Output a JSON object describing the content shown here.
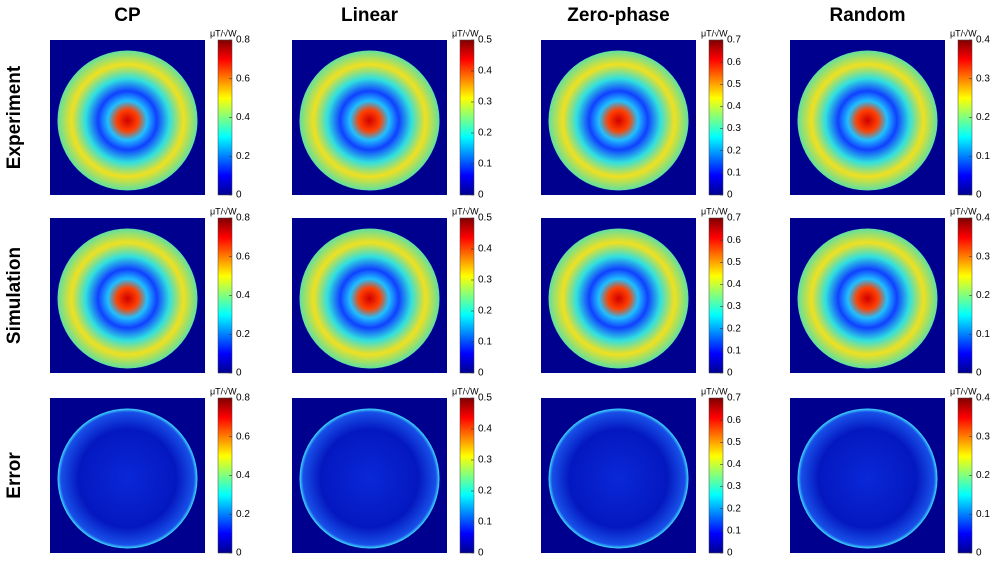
{
  "column_titles": [
    "CP",
    "Linear",
    "Zero-phase",
    "Random"
  ],
  "row_labels": [
    "Experiment",
    "Simulation",
    "Error"
  ],
  "chart_data": [
    {
      "type": "heatmap",
      "colorbar_label": "μT/√W",
      "clim": [
        0,
        0.8
      ],
      "cticks": [
        0,
        0.2,
        0.4,
        0.6,
        0.8
      ]
    },
    {
      "type": "heatmap",
      "colorbar_label": "μT/√W",
      "clim": [
        0,
        0.5
      ],
      "cticks": [
        0,
        0.1,
        0.2,
        0.3,
        0.4,
        0.5
      ]
    },
    {
      "type": "heatmap",
      "colorbar_label": "μT/√W",
      "clim": [
        0,
        0.7
      ],
      "cticks": [
        0,
        0.1,
        0.2,
        0.3,
        0.4,
        0.5,
        0.6,
        0.7
      ]
    },
    {
      "type": "heatmap",
      "colorbar_label": "μT/√W",
      "clim": [
        0,
        0.4
      ],
      "cticks": [
        0,
        0.1,
        0.2,
        0.3,
        0.4
      ]
    },
    {
      "type": "heatmap",
      "colorbar_label": "μT/√W",
      "clim": [
        0,
        0.8
      ],
      "cticks": [
        0,
        0.2,
        0.4,
        0.6,
        0.8
      ]
    },
    {
      "type": "heatmap",
      "colorbar_label": "μT/√W",
      "clim": [
        0,
        0.5
      ],
      "cticks": [
        0,
        0.1,
        0.2,
        0.3,
        0.4,
        0.5
      ]
    },
    {
      "type": "heatmap",
      "colorbar_label": "μT/√W",
      "clim": [
        0,
        0.7
      ],
      "cticks": [
        0,
        0.1,
        0.2,
        0.3,
        0.4,
        0.5,
        0.6,
        0.7
      ]
    },
    {
      "type": "heatmap",
      "colorbar_label": "μT/√W",
      "clim": [
        0,
        0.4
      ],
      "cticks": [
        0,
        0.1,
        0.2,
        0.3,
        0.4
      ]
    },
    {
      "type": "heatmap",
      "colorbar_label": "μT/√W",
      "clim": [
        0,
        0.8
      ],
      "cticks": [
        0,
        0.2,
        0.4,
        0.6,
        0.8
      ]
    },
    {
      "type": "heatmap",
      "colorbar_label": "μT/√W",
      "clim": [
        0,
        0.5
      ],
      "cticks": [
        0,
        0.1,
        0.2,
        0.3,
        0.4,
        0.5
      ]
    },
    {
      "type": "heatmap",
      "colorbar_label": "μT/√W",
      "clim": [
        0,
        0.7
      ],
      "cticks": [
        0,
        0.1,
        0.2,
        0.3,
        0.4,
        0.5,
        0.6,
        0.7
      ]
    },
    {
      "type": "heatmap",
      "colorbar_label": "μT/√W",
      "clim": [
        0,
        0.4
      ],
      "cticks": [
        0,
        0.1,
        0.2,
        0.3,
        0.4
      ]
    }
  ]
}
